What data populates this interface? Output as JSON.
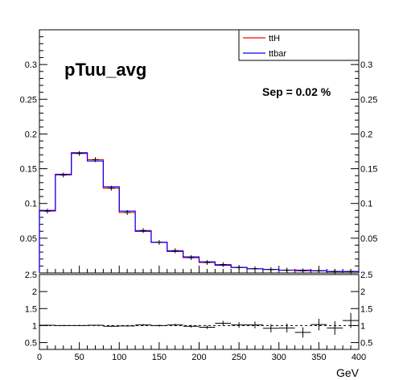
{
  "chart_data": [
    {
      "type": "histogram",
      "title": "pTuu_avg",
      "annotation": "Sep = 0.02 %",
      "xlim": [
        0,
        400
      ],
      "ylim": [
        0,
        0.35
      ],
      "y_ticks": [
        "0.05",
        "0.1",
        "0.15",
        "0.2",
        "0.25",
        "0.3"
      ],
      "bin_edges": [
        0,
        20,
        40,
        60,
        80,
        100,
        120,
        140,
        160,
        180,
        200,
        220,
        240,
        260,
        280,
        300,
        320,
        340,
        360,
        380,
        400
      ],
      "legend_position": "top-right",
      "series": [
        {
          "name": "ttH",
          "color": "#ff0000",
          "values": [
            0.089,
            0.141,
            0.172,
            0.163,
            0.122,
            0.087,
            0.061,
            0.044,
            0.032,
            0.022,
            0.015,
            0.012,
            0.008,
            0.006,
            0.005,
            0.004,
            0.003,
            0.003,
            0.002,
            0.002
          ]
        },
        {
          "name": "ttbar",
          "color": "#0000ff",
          "values": [
            0.09,
            0.142,
            0.173,
            0.161,
            0.124,
            0.089,
            0.06,
            0.044,
            0.031,
            0.023,
            0.016,
            0.011,
            0.008,
            0.006,
            0.005,
            0.004,
            0.004,
            0.003,
            0.002,
            0.002
          ]
        }
      ]
    },
    {
      "type": "ratio",
      "xlabel": "GeV",
      "xlim": [
        0,
        400
      ],
      "ylim": [
        0.3,
        2.5
      ],
      "x_ticks": [
        "0",
        "50",
        "100",
        "150",
        "200",
        "250",
        "300",
        "350",
        "400"
      ],
      "y_ticks": [
        "0.5",
        "1",
        "1.5",
        "2",
        "2.5"
      ],
      "reference_line": 1,
      "points": {
        "x": [
          10,
          30,
          50,
          70,
          90,
          110,
          130,
          150,
          170,
          190,
          210,
          230,
          250,
          270,
          290,
          310,
          330,
          350,
          370,
          390
        ],
        "y": [
          1.01,
          1.0,
          1.0,
          1.01,
          0.98,
          0.99,
          1.02,
          1.0,
          1.02,
          0.98,
          0.95,
          1.07,
          1.02,
          1.02,
          0.92,
          0.93,
          0.8,
          1.03,
          0.93,
          1.15
        ],
        "err": [
          0.02,
          0.015,
          0.015,
          0.015,
          0.02,
          0.02,
          0.025,
          0.03,
          0.035,
          0.04,
          0.05,
          0.07,
          0.08,
          0.1,
          0.12,
          0.13,
          0.15,
          0.17,
          0.2,
          0.22
        ]
      }
    }
  ]
}
